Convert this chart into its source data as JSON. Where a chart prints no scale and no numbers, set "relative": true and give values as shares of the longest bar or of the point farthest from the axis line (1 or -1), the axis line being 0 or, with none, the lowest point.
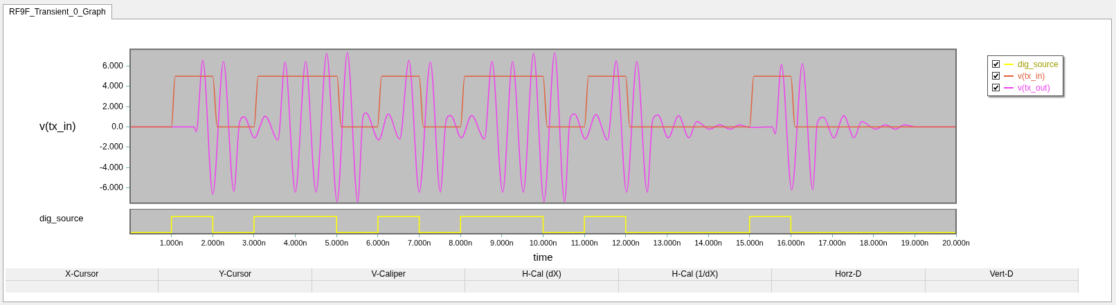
{
  "chart_data": [
    {
      "type": "line",
      "title": "RF9F_Transient_0_Graph",
      "ylabel": "v(tx_in)",
      "xlim": [
        0,
        20
      ],
      "ylim": [
        -7.5,
        7.65
      ],
      "yticks": [
        {
          "value": -6,
          "label": "-6.000"
        },
        {
          "value": -4,
          "label": "-4.000"
        },
        {
          "value": -2,
          "label": "-2.000"
        },
        {
          "value": 0,
          "label": "0.0"
        },
        {
          "value": 2,
          "label": "2.000"
        },
        {
          "value": 4,
          "label": "4.000"
        },
        {
          "value": 6,
          "label": "6.000"
        }
      ],
      "tick_labels": "y",
      "grid": false,
      "legend": "right",
      "marker": "none",
      "series": [
        {
          "name": "v(tx_in)",
          "color": "#e2603c",
          "x": [
            0,
            1,
            1.09,
            2,
            2.11,
            3,
            3.1,
            5.01,
            5.11,
            5.99,
            6.09,
            7,
            7.1,
            8,
            8.1,
            10,
            10.1,
            11,
            11.1,
            12,
            12.1,
            15,
            15.1,
            16,
            16.1,
            20
          ],
          "values": [
            0,
            0,
            5,
            5,
            0,
            0,
            5,
            5,
            0,
            0,
            5,
            5,
            0,
            0,
            5,
            5,
            0,
            0,
            5,
            5,
            0,
            0,
            5,
            5,
            0,
            0
          ]
        },
        {
          "name": "v(tx_out)",
          "color": "#f040f0",
          "x": [
            0,
            1.55,
            1.6,
            1.76,
            2.0,
            2.26,
            2.51,
            2.65,
            2.76,
            3.01,
            3.27,
            3.58,
            3.75,
            4.0,
            4.25,
            4.5,
            4.76,
            5.01,
            5.26,
            5.51,
            5.64,
            5.71,
            6.02,
            6.25,
            6.53,
            6.75,
            7.0,
            7.27,
            7.51,
            7.65,
            7.76,
            8.02,
            8.27,
            8.58,
            8.76,
            9.02,
            9.26,
            9.52,
            9.77,
            10.02,
            10.28,
            10.52,
            10.65,
            10.76,
            11.02,
            11.28,
            11.56,
            11.77,
            12.02,
            12.27,
            12.52,
            12.65,
            12.78,
            13.03,
            13.28,
            13.53,
            13.72,
            14.03,
            14.28,
            14.53,
            14.76,
            15.0,
            15.55,
            15.62,
            15.77,
            16.02,
            16.28,
            16.53,
            16.64,
            16.79,
            17.04,
            17.28,
            17.53,
            17.71,
            18.05,
            18.29,
            18.53,
            18.75,
            19.03,
            20
          ],
          "values": [
            0,
            0,
            -0.47,
            6.58,
            -6.62,
            6.45,
            -6.33,
            0.47,
            1.0,
            -1.07,
            1.07,
            -1.28,
            6.37,
            -6.41,
            6.45,
            -6.41,
            7.26,
            -7.37,
            7.33,
            -7.37,
            1.07,
            1.39,
            -1.28,
            1.28,
            -1.18,
            6.56,
            -6.41,
            6.41,
            -6.41,
            0.64,
            1.13,
            -1.07,
            1.13,
            -1.18,
            6.45,
            -6.41,
            6.45,
            -6.41,
            7.26,
            -7.37,
            7.31,
            -7.37,
            0.75,
            1.28,
            -1.18,
            1.24,
            -1.28,
            6.52,
            -6.41,
            6.45,
            -6.41,
            0.64,
            1.18,
            -1.07,
            1.11,
            -1.07,
            0.53,
            -0.21,
            0.21,
            -0.21,
            0.21,
            -0.05,
            0,
            -0.68,
            6.15,
            -6.2,
            6.24,
            -6.2,
            0.43,
            0.96,
            -1.07,
            1.11,
            -1.07,
            0.53,
            -0.21,
            0.21,
            -0.21,
            0.21,
            0,
            0
          ]
        }
      ]
    },
    {
      "type": "step",
      "ylabel": "dig_source",
      "xlabel": "time",
      "relative": true,
      "xlim": [
        0,
        20
      ],
      "xticks": [
        {
          "value": 1,
          "label": "1.000n"
        },
        {
          "value": 2,
          "label": "2.000n"
        },
        {
          "value": 3,
          "label": "3.000n"
        },
        {
          "value": 4,
          "label": "4.000n"
        },
        {
          "value": 5,
          "label": "5.000n"
        },
        {
          "value": 6,
          "label": "6.000n"
        },
        {
          "value": 7,
          "label": "7.000n"
        },
        {
          "value": 8,
          "label": "8.000n"
        },
        {
          "value": 9,
          "label": "9.000n"
        },
        {
          "value": 10,
          "label": "10.000n"
        },
        {
          "value": 11,
          "label": "11.000n"
        },
        {
          "value": 12,
          "label": "12.000n"
        },
        {
          "value": 13,
          "label": "13.000n"
        },
        {
          "value": 14,
          "label": "14.000n"
        },
        {
          "value": 15,
          "label": "15.000n"
        },
        {
          "value": 16,
          "label": "16.000n"
        },
        {
          "value": 17,
          "label": "17.000n"
        },
        {
          "value": 18,
          "label": "18.000n"
        },
        {
          "value": 19,
          "label": "19.000n"
        },
        {
          "value": 20,
          "label": "20.000n"
        }
      ],
      "tick_labels": "x",
      "grid": false,
      "legend": "right",
      "marker": "none",
      "series": [
        {
          "name": "dig_source",
          "color": "#ffff00",
          "x": [
            0,
            1,
            2,
            3,
            5,
            6,
            7,
            8,
            10,
            11,
            12,
            15,
            16,
            20
          ],
          "values": [
            0,
            1,
            0,
            1,
            0,
            1,
            0,
            1,
            0,
            1,
            0,
            1,
            0,
            0
          ]
        }
      ]
    },
    {
      "type": "other",
      "annotations": [
        "X-Cursor",
        "Y-Cursor",
        "V-Caliper",
        "H-Cal (dX)",
        "H-Cal (1/dX)",
        "Horz-D",
        "Vert-D"
      ]
    }
  ]
}
